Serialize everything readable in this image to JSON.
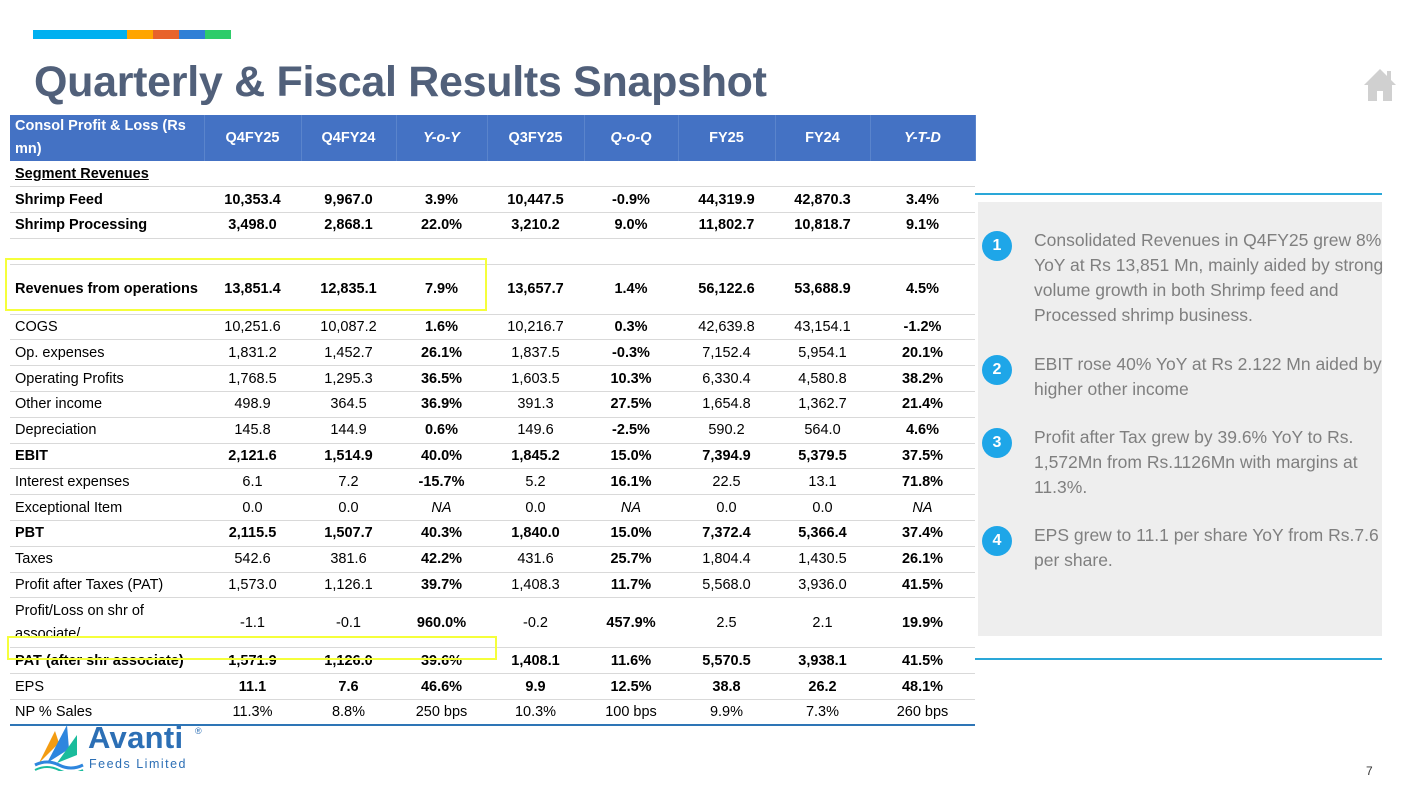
{
  "title": "Quarterly & Fiscal Results Snapshot",
  "brand_colors": [
    "#00b0f0",
    "#ffa500",
    "#e8632b",
    "#2f7fd6",
    "#2ecc6a"
  ],
  "table": {
    "header": [
      "Consol Profit & Loss (Rs mn)",
      "Q4FY25",
      "Q4FY24",
      "Y-o-Y",
      "Q3FY25",
      "Q-o-Q",
      "FY25",
      "FY24",
      "Y-T-D"
    ],
    "rows": [
      {
        "label": "Segment Revenues",
        "values": [
          "",
          "",
          "",
          "",
          "",
          "",
          "",
          ""
        ]
      },
      {
        "label": "Shrimp Feed",
        "values": [
          "10,353.4",
          "9,967.0",
          "3.9%",
          "10,447.5",
          "-0.9%",
          "44,319.9",
          "42,870.3",
          "3.4%"
        ]
      },
      {
        "label": "Shrimp Processing",
        "values": [
          "3,498.0",
          "2,868.1",
          "22.0%",
          "3,210.2",
          "9.0%",
          "11,802.7",
          "10,818.7",
          "9.1%"
        ]
      },
      {
        "label": "",
        "values": [
          "",
          "",
          "",
          "",
          "",
          "",
          "",
          ""
        ]
      },
      {
        "label": "Revenues from operations",
        "values": [
          "13,851.4",
          "12,835.1",
          "7.9%",
          "13,657.7",
          "1.4%",
          "56,122.6",
          "53,688.9",
          "4.5%"
        ]
      },
      {
        "label": "COGS",
        "values": [
          "10,251.6",
          "10,087.2",
          "1.6%",
          "10,216.7",
          "0.3%",
          "42,639.8",
          "43,154.1",
          "-1.2%"
        ]
      },
      {
        "label": "Op. expenses",
        "values": [
          "1,831.2",
          "1,452.7",
          "26.1%",
          "1,837.5",
          "-0.3%",
          "7,152.4",
          "5,954.1",
          "20.1%"
        ]
      },
      {
        "label": "Operating Profits",
        "values": [
          "1,768.5",
          "1,295.3",
          "36.5%",
          "1,603.5",
          "10.3%",
          "6,330.4",
          "4,580.8",
          "38.2%"
        ]
      },
      {
        "label": "Other income",
        "values": [
          "498.9",
          "364.5",
          "36.9%",
          "391.3",
          "27.5%",
          "1,654.8",
          "1,362.7",
          "21.4%"
        ]
      },
      {
        "label": "Depreciation",
        "values": [
          "145.8",
          "144.9",
          "0.6%",
          "149.6",
          "-2.5%",
          "590.2",
          "564.0",
          "4.6%"
        ]
      },
      {
        "label": "EBIT",
        "values": [
          "2,121.6",
          "1,514.9",
          "40.0%",
          "1,845.2",
          "15.0%",
          "7,394.9",
          "5,379.5",
          "37.5%"
        ]
      },
      {
        "label": "Interest expenses",
        "values": [
          "6.1",
          "7.2",
          "-15.7%",
          "5.2",
          "16.1%",
          "22.5",
          "13.1",
          "71.8%"
        ]
      },
      {
        "label": "Exceptional Item",
        "values": [
          "0.0",
          "0.0",
          "NA",
          "0.0",
          "NA",
          "0.0",
          "0.0",
          "NA"
        ]
      },
      {
        "label": "PBT",
        "values": [
          "2,115.5",
          "1,507.7",
          "40.3%",
          "1,840.0",
          "15.0%",
          "7,372.4",
          "5,366.4",
          "37.4%"
        ]
      },
      {
        "label": "Taxes",
        "values": [
          "542.6",
          "381.6",
          "42.2%",
          "431.6",
          "25.7%",
          "1,804.4",
          "1,430.5",
          "26.1%"
        ]
      },
      {
        "label": "Profit after Taxes (PAT)",
        "values": [
          "1,573.0",
          "1,126.1",
          "39.7%",
          "1,408.3",
          "11.7%",
          "5,568.0",
          "3,936.0",
          "41.5%"
        ]
      },
      {
        "label": "Profit/Loss on shr of associate/",
        "values": [
          "-1.1",
          "-0.1",
          "960.0%",
          "-0.2",
          "457.9%",
          "2.5",
          "2.1",
          "19.9%"
        ]
      },
      {
        "label": "PAT (after shr associate)",
        "values": [
          "1,571.9",
          "1,126.0",
          "39.6%",
          "1,408.1",
          "11.6%",
          "5,570.5",
          "3,938.1",
          "41.5%"
        ]
      },
      {
        "label": "EPS",
        "values": [
          "11.1",
          "7.6",
          "46.6%",
          "9.9",
          "12.5%",
          "38.8",
          "26.2",
          "48.1%"
        ]
      },
      {
        "label": "NP % Sales",
        "values": [
          "11.3%",
          "8.8%",
          "250 bps",
          "10.3%",
          "100 bps",
          "9.9%",
          "7.3%",
          "260 bps"
        ]
      }
    ]
  },
  "highlights": [
    {
      "num": "1",
      "text": "Consolidated Revenues in Q4FY25 grew 8% YoY at Rs 13,851 Mn, mainly aided by strong volume growth in both Shrimp feed and Processed shrimp business."
    },
    {
      "num": "2",
      "text": "EBIT rose 40% YoY at Rs 2.122 Mn  aided by higher other income"
    },
    {
      "num": "3",
      "text": "Profit after Tax grew by 39.6% YoY to Rs. 1,572Mn from Rs.1126Mn with margins at 11.3%."
    },
    {
      "num": "4",
      "text": "EPS grew to 11.1 per share YoY from Rs.7.6 per share."
    }
  ],
  "logo": {
    "name": "Avanti",
    "registered": "®",
    "subtitle": "Feeds Limited"
  },
  "page_number": "7"
}
